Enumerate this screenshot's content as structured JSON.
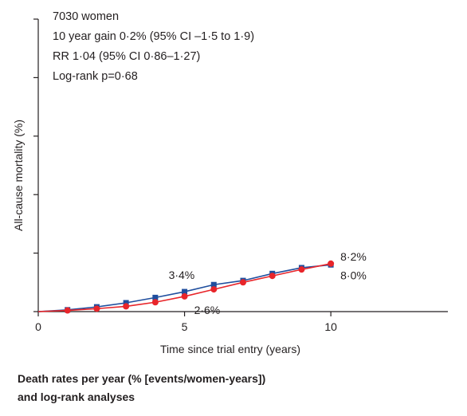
{
  "annotations": {
    "line1": "7030 women",
    "line2": "10 year gain 0·2% (95% CI –1·5 to 1·9)",
    "line3": "RR 1·04 (95% CI 0·86–1·27)",
    "line4": "Log-rank p=0·68"
  },
  "caption": {
    "line1": "Death rates per year (% [events/women-years])",
    "line2": "and log-rank analyses"
  },
  "chart_data": {
    "type": "line",
    "xlabel": "Time since trial entry (years)",
    "ylabel": "All-cause mortality (%)",
    "xlim": [
      0,
      14
    ],
    "ylim": [
      0,
      50
    ],
    "x_ticks": [
      "0",
      "5",
      "10"
    ],
    "x_tick_values": [
      0,
      5,
      10
    ],
    "y_tick_values": [
      0,
      10,
      20,
      30,
      40,
      50
    ],
    "grid": false,
    "series": [
      {
        "color": "#1f4e9e",
        "marker": "square",
        "x": [
          0,
          1,
          2,
          3,
          4,
          5,
          6,
          7,
          8,
          9,
          10
        ],
        "y": [
          0,
          0.3,
          0.8,
          1.5,
          2.4,
          3.4,
          4.6,
          5.3,
          6.5,
          7.5,
          8.0
        ]
      },
      {
        "color": "#e8252a",
        "marker": "circle",
        "x": [
          0,
          1,
          2,
          3,
          4,
          5,
          6,
          7,
          8,
          9,
          10
        ],
        "y": [
          0,
          0.2,
          0.5,
          0.9,
          1.6,
          2.6,
          3.8,
          5.0,
          6.1,
          7.2,
          8.2
        ]
      }
    ],
    "data_labels": [
      {
        "text": "3·4%",
        "series": 0,
        "x": 5
      },
      {
        "text": "2·6%",
        "series": 1,
        "x": 5
      },
      {
        "text": "8·2%",
        "series": 1,
        "x": 10
      },
      {
        "text": "8·0%",
        "series": 0,
        "x": 10
      }
    ]
  }
}
